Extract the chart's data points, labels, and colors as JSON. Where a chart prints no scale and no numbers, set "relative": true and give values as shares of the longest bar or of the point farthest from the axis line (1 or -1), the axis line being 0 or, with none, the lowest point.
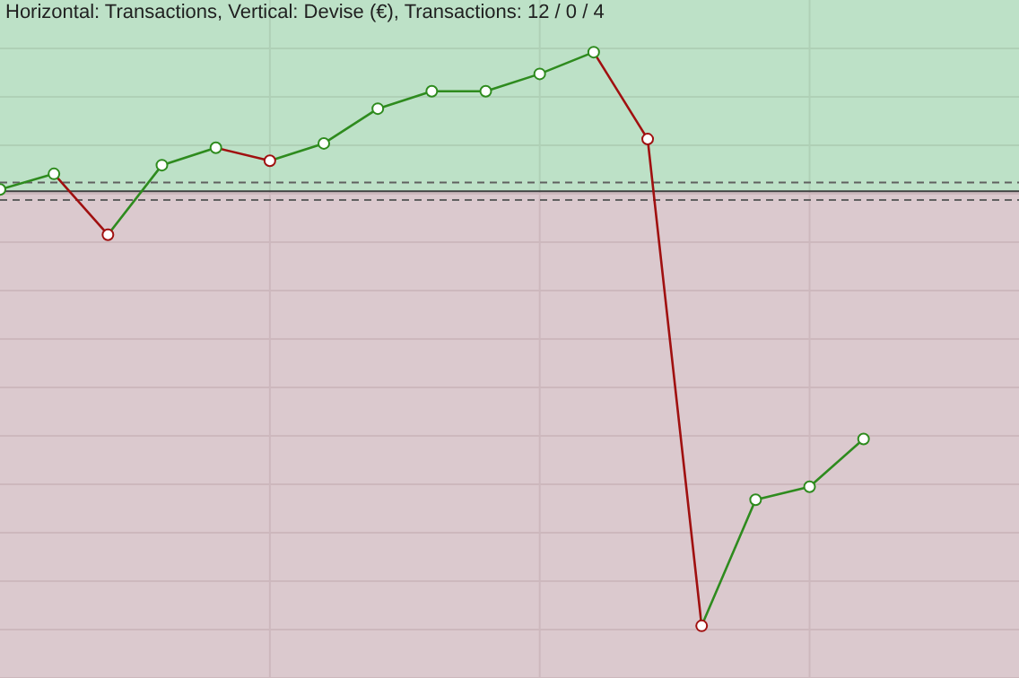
{
  "chart_data": {
    "type": "line",
    "title": "Horizontal: Transactions, Vertical: Devise (€), Transactions: 12 / 0 / 4",
    "relative": true,
    "categories": [
      null,
      null,
      null,
      null,
      null,
      null,
      null,
      null,
      null,
      null,
      null,
      null,
      null,
      null,
      null,
      null,
      null
    ],
    "series": [
      {
        "color": "#2e8b1e",
        "values": [
          0.004,
          0.04,
          -0.1,
          0.06,
          0.1,
          0.07,
          0.11,
          0.19,
          0.23,
          0.23,
          0.27,
          0.32,
          0.12,
          -1,
          -0.71,
          -0.68,
          -0.57
        ],
        "colors": [
          "#2e8b1e",
          "#2e8b1e",
          "#a01010",
          "#2e8b1e",
          "#2e8b1e",
          "#a01010",
          "#2e8b1e",
          "#2e8b1e",
          "#2e8b1e",
          "#2e8b1e",
          "#2e8b1e",
          "#2e8b1e",
          "#a01010",
          "#a01010",
          "#2e8b1e",
          "#2e8b1e",
          "#2e8b1e"
        ]
      }
    ],
    "bands": [
      {
        "axis": "y",
        "from": 0,
        "to": 0.44,
        "color": "#acd9b9"
      },
      {
        "axis": "y",
        "from": -1.12,
        "to": 0,
        "color": "#d2bcc2"
      }
    ],
    "ref_lines": [
      {
        "axis": "y",
        "value": 0,
        "color": "#404040",
        "line_style": "solid"
      },
      {
        "axis": "y",
        "value": 0.02,
        "color": "#606060",
        "line_style": "dashed"
      },
      {
        "axis": "y",
        "value": -0.02,
        "color": "#606060",
        "line_style": "dashed"
      }
    ],
    "grid": true,
    "marker": "circle",
    "line_style": "solid",
    "legend": false
  }
}
